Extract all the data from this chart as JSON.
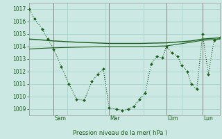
{
  "bg_color": "#cce8e3",
  "grid_color": "#aad4ce",
  "line_color": "#1a5c1a",
  "ylim": [
    1008.5,
    1017.5
  ],
  "yticks": [
    1009,
    1010,
    1011,
    1012,
    1013,
    1014,
    1015,
    1016,
    1017
  ],
  "xlabel": "Pression niveau de la mer( hPa )",
  "vlines_x": [
    0.13,
    0.42,
    0.72,
    0.91
  ],
  "vlines_labels": [
    "Sam",
    "Mar",
    "Dim",
    "Lun"
  ],
  "series1_x": [
    0.0,
    0.03,
    0.07,
    0.1,
    0.13,
    0.17,
    0.21,
    0.25,
    0.29,
    0.33,
    0.36,
    0.39,
    0.42,
    0.46,
    0.49,
    0.52,
    0.55,
    0.58,
    0.61,
    0.64,
    0.67,
    0.7,
    0.72,
    0.75,
    0.78,
    0.8,
    0.83,
    0.85,
    0.88,
    0.91,
    0.94,
    0.97,
    1.0
  ],
  "series1_y": [
    1017.0,
    1016.2,
    1015.4,
    1014.6,
    1013.8,
    1012.4,
    1011.0,
    1009.8,
    1009.7,
    1011.2,
    1011.8,
    1012.2,
    1009.1,
    1009.0,
    1008.9,
    1009.0,
    1009.2,
    1009.8,
    1010.3,
    1012.6,
    1013.2,
    1013.1,
    1014.0,
    1013.5,
    1013.2,
    1012.5,
    1012.0,
    1011.0,
    1010.6,
    1015.0,
    1011.8,
    1014.5,
    1014.7
  ],
  "series2_x": [
    0.0,
    0.05,
    0.13,
    0.25,
    0.42,
    0.58,
    0.72,
    0.85,
    0.91,
    1.0
  ],
  "series2_y": [
    1014.6,
    1014.55,
    1014.45,
    1014.35,
    1014.25,
    1014.25,
    1014.3,
    1014.45,
    1014.6,
    1014.7
  ],
  "series3_x": [
    0.0,
    0.05,
    0.13,
    0.25,
    0.42,
    0.58,
    0.72,
    0.85,
    0.91,
    1.0
  ],
  "series3_y": [
    1013.8,
    1013.85,
    1013.9,
    1013.95,
    1014.0,
    1014.0,
    1014.05,
    1014.35,
    1014.5,
    1014.6
  ]
}
